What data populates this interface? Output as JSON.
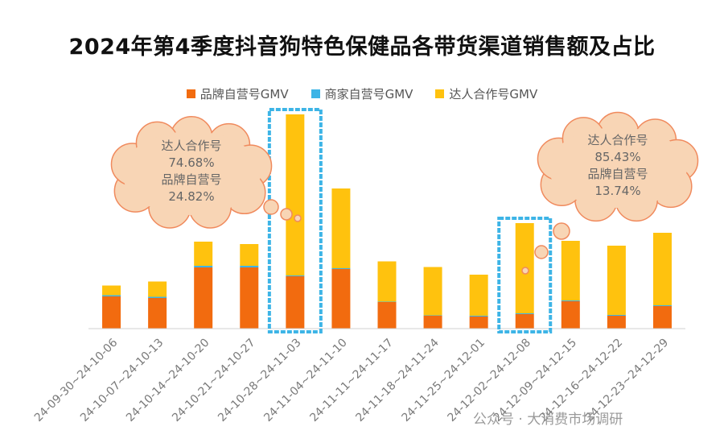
{
  "colors": {
    "brand": "#F26B0F",
    "merchant": "#3DB4E6",
    "influencer": "#FFC20E",
    "highlight_box": "#3DB4E6",
    "bubble_fill": "#F8D5B5",
    "bubble_stroke": "#F08A5D"
  },
  "chart_data": {
    "type": "bar",
    "stacked": true,
    "title": "2024年第4季度抖音狗特色保健品各带货渠道销售额及占比",
    "legend_position": "top-center",
    "grid": false,
    "categories": [
      "24-09-30~24-10-06",
      "24-10-07~24-10-13",
      "24-10-14~24-10-20",
      "24-10-21~24-10-27",
      "24-10-28~24-11-03",
      "24-11-04~24-11-10",
      "24-11-11~24-11-17",
      "24-11-18~24-11-24",
      "24-11-25~24-12-01",
      "24-12-02~24-12-08",
      "24-12-09~24-12-15",
      "24-12-16~24-12-22",
      "24-12-23~24-12-29"
    ],
    "series": [
      {
        "name": "品牌自营号GMV",
        "color_key": "brand",
        "values": [
          40,
          38,
          76,
          76,
          65,
          74,
          33,
          16,
          15,
          18,
          34,
          16,
          28
        ]
      },
      {
        "name": "商家自营号GMV",
        "color_key": "merchant",
        "values": [
          1.5,
          1.5,
          2,
          2,
          1,
          1,
          0.5,
          0.5,
          1,
          1,
          1,
          1,
          1
        ]
      },
      {
        "name": "达人合作号GMV",
        "color_key": "influencer",
        "values": [
          12,
          19,
          30,
          27,
          200,
          99,
          50,
          60,
          51,
          112,
          74,
          86,
          90
        ]
      }
    ],
    "ylim": [
      0,
      270
    ],
    "highlighted_categories": [
      "24-10-28~24-11-03",
      "24-12-02~24-12-08"
    ],
    "annotations": [
      {
        "category": "24-10-28~24-11-03",
        "lines": [
          "达人合作号",
          "74.68%",
          "品牌自营号",
          "24.82%"
        ]
      },
      {
        "category": "24-12-02~24-12-08",
        "lines": [
          "达人合作号",
          "85.43%",
          "品牌自营号",
          "13.74%"
        ]
      }
    ]
  },
  "watermark": "公众号 · 大消费市场调研"
}
